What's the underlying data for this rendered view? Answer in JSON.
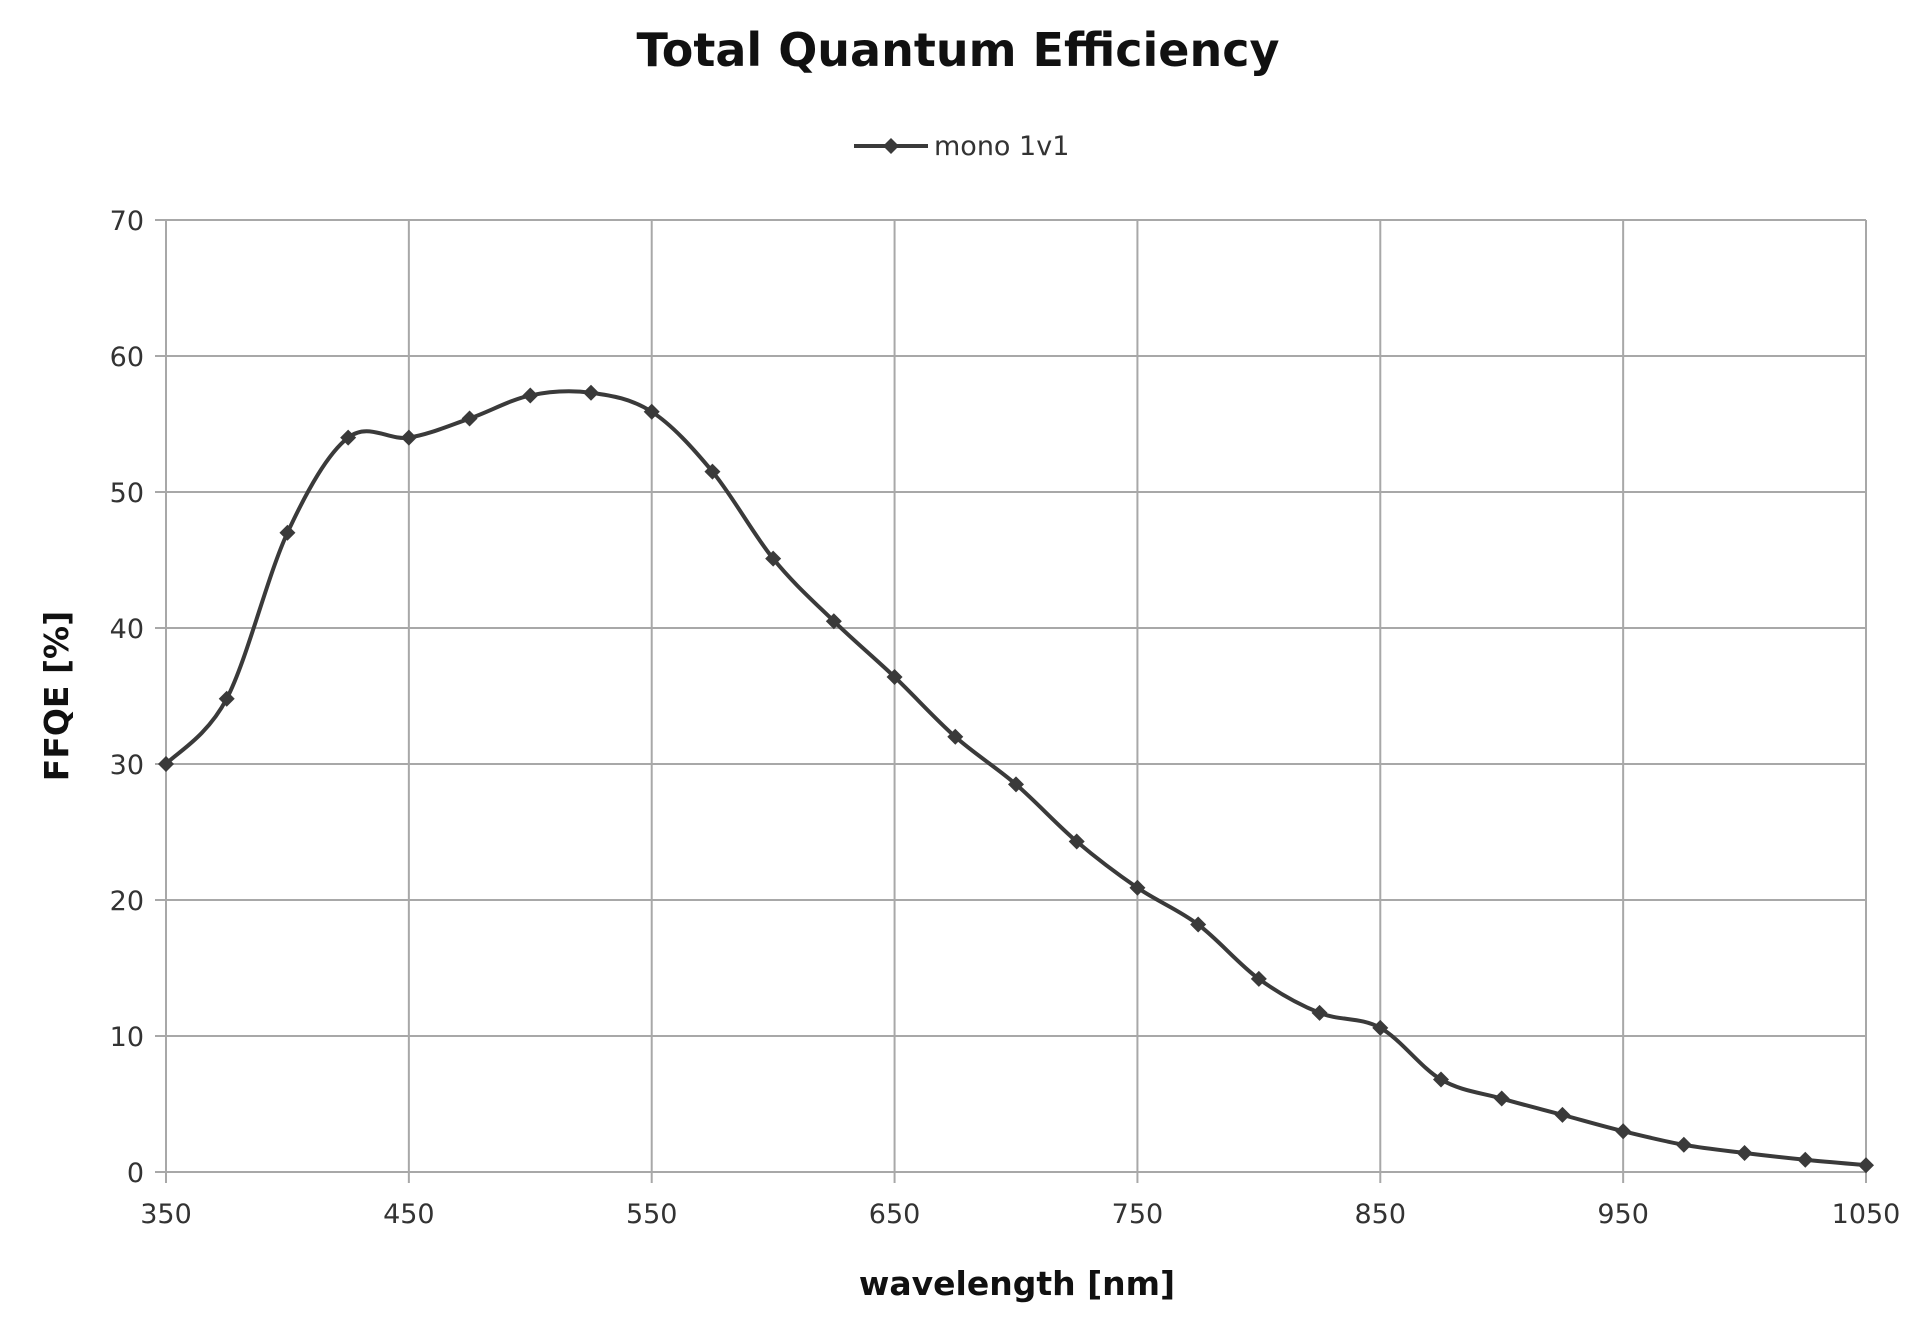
{
  "chart_data": {
    "type": "line",
    "title": "Total Quantum Efficiency",
    "xlabel": "wavelength [nm]",
    "ylabel": "FFQE [%]",
    "xlim": [
      350,
      1050
    ],
    "ylim": [
      0,
      70
    ],
    "xticks": [
      350,
      450,
      550,
      650,
      750,
      850,
      950,
      1050
    ],
    "yticks": [
      0,
      10,
      20,
      30,
      40,
      50,
      60,
      70
    ],
    "grid": true,
    "legend_position": "top-center",
    "series": [
      {
        "name": "mono 1v1",
        "color": "#3a3a3a",
        "marker": "diamond",
        "smooth": true,
        "x": [
          350,
          375,
          400,
          425,
          450,
          475,
          500,
          525,
          550,
          575,
          600,
          625,
          650,
          675,
          700,
          725,
          750,
          775,
          800,
          825,
          850,
          875,
          900,
          925,
          950,
          975,
          1000,
          1025,
          1050
        ],
        "y": [
          30.0,
          34.8,
          47.0,
          54.0,
          54.0,
          55.4,
          57.1,
          57.3,
          55.9,
          51.5,
          45.1,
          40.5,
          36.4,
          32.0,
          28.5,
          24.3,
          20.9,
          18.2,
          14.2,
          11.7,
          10.6,
          6.8,
          5.4,
          4.2,
          3.0,
          2.0,
          1.4,
          0.9,
          0.5
        ]
      }
    ]
  }
}
